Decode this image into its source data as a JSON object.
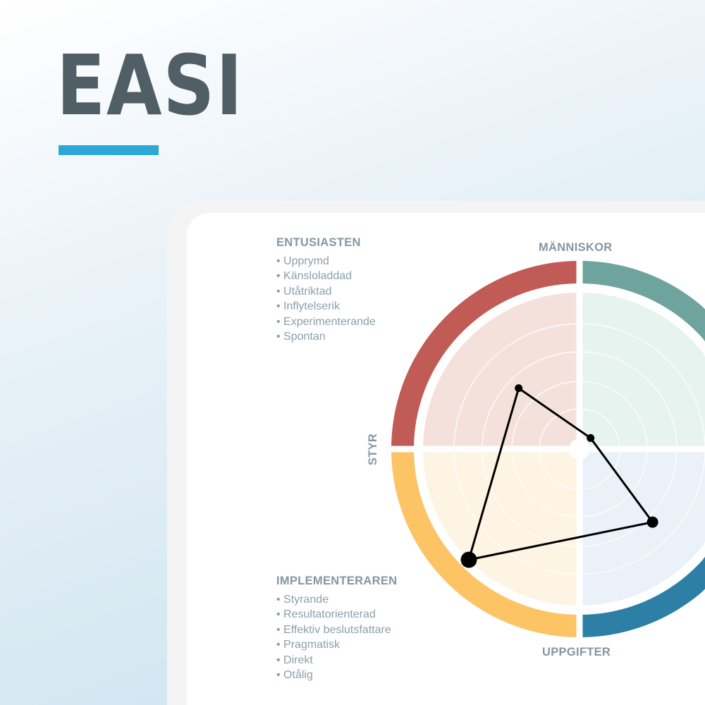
{
  "title": "EASI",
  "colors": {
    "title": "#505e66",
    "accent_bar": "#2ba8d6"
  },
  "diagram": {
    "axes": {
      "top": "MÄNNISKOR",
      "bottom": "UPPGIFTER",
      "left": "STYR"
    },
    "groups": [
      {
        "heading": "ENTUSIASTEN",
        "items": [
          "Upprymd",
          "Känsloladdad",
          "Utåtriktad",
          "Inflytelserik",
          "Experimenterande",
          "Spontan"
        ]
      },
      {
        "heading": "IMPLEMENTERAREN",
        "items": [
          "Styrande",
          "Resultatorienterad",
          "Effektiv beslutsfattare",
          "Pragmatisk",
          "Direkt",
          "Otålig"
        ]
      }
    ],
    "quadrant_colors": {
      "top_left": {
        "ring": "#c05b55",
        "fill": "#f5e1dc"
      },
      "top_right": {
        "ring": "#6fa39e",
        "fill": "#e7f3ee"
      },
      "bottom_left": {
        "ring": "#fcc464",
        "fill": "#fdf4e3"
      },
      "bottom_right": {
        "ring": "#2e7fa6",
        "fill": "#ebf1f8"
      }
    },
    "profile_points_percent": {
      "top_left": 55,
      "top_right": 10,
      "bottom_right": 66,
      "bottom_left": 100
    }
  }
}
